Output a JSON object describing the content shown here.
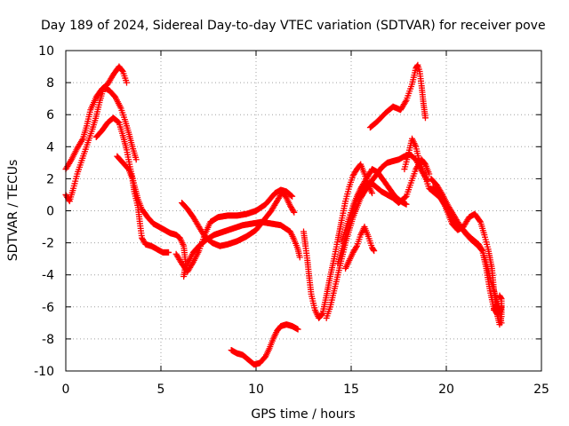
{
  "chart_data": {
    "type": "scatter",
    "title": "Day 189 of 2024, Sidereal Day-to-day VTEC variation (SDTVAR) for receiver pove",
    "xlabel": "GPS time / hours",
    "ylabel": "SDTVAR / TECUs",
    "xlim": [
      0,
      25
    ],
    "ylim": [
      -10,
      10
    ],
    "x_ticks": [
      0,
      5,
      10,
      15,
      20,
      25
    ],
    "x_tick_labels": [
      "0",
      "5",
      "10",
      "15",
      "20",
      "25"
    ],
    "y_ticks": [
      -10,
      -8,
      -6,
      -4,
      -2,
      0,
      2,
      4,
      6,
      8,
      10
    ],
    "y_tick_labels": [
      "-10",
      "-8",
      "-6",
      "-4",
      "-2",
      "0",
      "2",
      "4",
      "6",
      "8",
      "10"
    ],
    "grid": true,
    "marker": "plus",
    "color": "#ff0000",
    "series": [
      {
        "name": "s1",
        "points": [
          [
            0,
            2.6
          ],
          [
            0.3,
            3.2
          ],
          [
            0.6,
            3.9
          ],
          [
            0.9,
            4.5
          ],
          [
            1.1,
            5.3
          ],
          [
            1.3,
            6.3
          ],
          [
            1.6,
            7.1
          ],
          [
            1.9,
            7.6
          ],
          [
            2.2,
            7.9
          ],
          [
            2.5,
            8.5
          ],
          [
            2.8,
            9.0
          ],
          [
            3.0,
            8.7
          ],
          [
            3.2,
            8.0
          ]
        ]
      },
      {
        "name": "s2",
        "points": [
          [
            0,
            1.0
          ],
          [
            0.2,
            0.6
          ],
          [
            0.4,
            1.4
          ],
          [
            0.6,
            2.3
          ],
          [
            0.8,
            3.0
          ],
          [
            1.0,
            3.7
          ],
          [
            1.2,
            4.4
          ],
          [
            1.4,
            5.1
          ],
          [
            1.6,
            5.9
          ],
          [
            1.8,
            6.9
          ],
          [
            2.0,
            7.7
          ],
          [
            2.3,
            7.5
          ],
          [
            2.6,
            7.1
          ],
          [
            2.9,
            6.4
          ],
          [
            3.1,
            5.7
          ],
          [
            3.3,
            4.9
          ],
          [
            3.5,
            4.0
          ],
          [
            3.7,
            3.2
          ]
        ]
      },
      {
        "name": "s3",
        "points": [
          [
            1.6,
            4.6
          ],
          [
            1.9,
            5.0
          ],
          [
            2.2,
            5.5
          ],
          [
            2.5,
            5.8
          ],
          [
            2.8,
            5.5
          ],
          [
            3.0,
            4.7
          ],
          [
            3.2,
            3.8
          ],
          [
            3.4,
            2.6
          ],
          [
            3.6,
            1.6
          ],
          [
            3.8,
            0.7
          ],
          [
            4.0,
            0.1
          ],
          [
            4.3,
            -0.4
          ],
          [
            4.6,
            -0.8
          ],
          [
            4.9,
            -1.0
          ],
          [
            5.2,
            -1.2
          ],
          [
            5.5,
            -1.4
          ],
          [
            5.8,
            -1.5
          ],
          [
            6.0,
            -1.7
          ],
          [
            6.2,
            -2.2
          ],
          [
            6.3,
            -3.3
          ],
          [
            6.2,
            -4.1
          ],
          [
            6.4,
            -3.3
          ],
          [
            6.7,
            -2.6
          ],
          [
            7.0,
            -2.2
          ],
          [
            7.4,
            -1.8
          ],
          [
            7.8,
            -1.5
          ],
          [
            8.3,
            -1.3
          ],
          [
            8.8,
            -1.1
          ],
          [
            9.3,
            -0.9
          ],
          [
            9.8,
            -0.8
          ],
          [
            10.3,
            -0.7
          ],
          [
            10.8,
            -0.8
          ],
          [
            11.3,
            -0.9
          ],
          [
            11.8,
            -1.3
          ],
          [
            12.0,
            -1.8
          ],
          [
            12.2,
            -2.4
          ],
          [
            12.3,
            -2.9
          ]
        ]
      },
      {
        "name": "s4",
        "points": [
          [
            2.7,
            3.4
          ],
          [
            3.0,
            3.0
          ],
          [
            3.3,
            2.6
          ],
          [
            3.5,
            2.0
          ],
          [
            3.6,
            1.2
          ],
          [
            3.8,
            0.2
          ],
          [
            3.9,
            -0.8
          ],
          [
            4.0,
            -1.7
          ],
          [
            4.2,
            -2.1
          ],
          [
            4.5,
            -2.2
          ],
          [
            4.8,
            -2.4
          ],
          [
            5.1,
            -2.6
          ],
          [
            5.4,
            -2.6
          ]
        ]
      },
      {
        "name": "s5",
        "points": [
          [
            6.1,
            0.5
          ],
          [
            6.4,
            0.1
          ],
          [
            6.7,
            -0.4
          ],
          [
            7.0,
            -1.0
          ],
          [
            7.3,
            -1.6
          ],
          [
            7.7,
            -2.0
          ],
          [
            8.1,
            -2.2
          ],
          [
            8.5,
            -2.1
          ],
          [
            9.0,
            -1.9
          ],
          [
            9.5,
            -1.6
          ],
          [
            10.0,
            -1.2
          ],
          [
            10.4,
            -0.6
          ],
          [
            10.8,
            0.0
          ],
          [
            11.1,
            0.6
          ],
          [
            11.4,
            1.2
          ],
          [
            11.6,
            0.8
          ],
          [
            11.8,
            0.3
          ],
          [
            12.0,
            -0.1
          ]
        ]
      },
      {
        "name": "s6",
        "points": [
          [
            5.8,
            -2.7
          ],
          [
            6.1,
            -3.3
          ],
          [
            6.4,
            -3.8
          ],
          [
            6.7,
            -3.2
          ],
          [
            7.0,
            -2.5
          ],
          [
            7.3,
            -1.5
          ],
          [
            7.6,
            -0.7
          ],
          [
            8.0,
            -0.4
          ],
          [
            8.5,
            -0.3
          ],
          [
            9.0,
            -0.3
          ],
          [
            9.5,
            -0.2
          ],
          [
            10.0,
            0.0
          ],
          [
            10.5,
            0.4
          ],
          [
            11.0,
            1.1
          ],
          [
            11.3,
            1.3
          ],
          [
            11.6,
            1.2
          ],
          [
            11.9,
            0.9
          ]
        ]
      },
      {
        "name": "s7",
        "points": [
          [
            8.7,
            -8.7
          ],
          [
            9.0,
            -8.9
          ],
          [
            9.3,
            -9.0
          ],
          [
            9.6,
            -9.3
          ],
          [
            9.9,
            -9.6
          ],
          [
            10.2,
            -9.5
          ],
          [
            10.5,
            -9.1
          ],
          [
            10.7,
            -8.6
          ],
          [
            10.9,
            -8.0
          ],
          [
            11.1,
            -7.5
          ],
          [
            11.3,
            -7.2
          ],
          [
            11.6,
            -7.1
          ],
          [
            11.9,
            -7.2
          ],
          [
            12.2,
            -7.4
          ]
        ]
      },
      {
        "name": "s8",
        "points": [
          [
            12.5,
            -1.3
          ],
          [
            12.6,
            -2.2
          ],
          [
            12.7,
            -3.1
          ],
          [
            12.8,
            -4.2
          ],
          [
            12.9,
            -5.2
          ],
          [
            13.1,
            -6.2
          ],
          [
            13.3,
            -6.7
          ],
          [
            13.5,
            -6.4
          ],
          [
            13.7,
            -5.3
          ],
          [
            13.9,
            -4.1
          ],
          [
            14.1,
            -3.0
          ],
          [
            14.3,
            -1.8
          ],
          [
            14.5,
            -0.6
          ],
          [
            14.7,
            0.6
          ],
          [
            14.9,
            1.5
          ],
          [
            15.1,
            2.2
          ],
          [
            15.3,
            2.6
          ],
          [
            15.5,
            2.9
          ],
          [
            15.7,
            2.3
          ],
          [
            15.9,
            1.6
          ],
          [
            16.1,
            1.1
          ]
        ]
      },
      {
        "name": "s9",
        "points": [
          [
            13.7,
            -6.7
          ],
          [
            13.9,
            -6.0
          ],
          [
            14.1,
            -5.0
          ],
          [
            14.3,
            -4.0
          ],
          [
            14.5,
            -3.0
          ],
          [
            14.7,
            -2.0
          ],
          [
            14.9,
            -1.2
          ],
          [
            15.1,
            -0.4
          ],
          [
            15.3,
            0.2
          ],
          [
            15.5,
            0.8
          ],
          [
            15.7,
            1.2
          ],
          [
            15.9,
            1.5
          ],
          [
            16.1,
            1.9
          ],
          [
            16.3,
            2.2
          ],
          [
            16.6,
            2.7
          ],
          [
            16.9,
            3.0
          ],
          [
            17.2,
            3.1
          ],
          [
            17.5,
            3.2
          ],
          [
            17.8,
            3.4
          ],
          [
            18.1,
            3.5
          ],
          [
            18.4,
            3.2
          ],
          [
            18.7,
            2.5
          ],
          [
            19.0,
            1.9
          ]
        ]
      },
      {
        "name": "s10",
        "points": [
          [
            14.3,
            -3.3
          ],
          [
            14.5,
            -2.5
          ],
          [
            14.7,
            -1.6
          ],
          [
            14.9,
            -0.8
          ],
          [
            15.1,
            0.0
          ],
          [
            15.3,
            0.7
          ],
          [
            15.5,
            1.2
          ],
          [
            15.7,
            1.5
          ],
          [
            16.0,
            1.8
          ],
          [
            16.3,
            1.5
          ],
          [
            16.6,
            1.2
          ],
          [
            16.9,
            1.0
          ],
          [
            17.2,
            0.8
          ],
          [
            17.5,
            0.5
          ],
          [
            17.9,
            0.9
          ],
          [
            18.1,
            1.6
          ],
          [
            18.4,
            2.6
          ],
          [
            18.7,
            3.2
          ],
          [
            18.9,
            2.9
          ],
          [
            19.1,
            2.3
          ]
        ]
      },
      {
        "name": "s11",
        "points": [
          [
            14.7,
            -3.6
          ],
          [
            14.9,
            -3.1
          ],
          [
            15.1,
            -2.6
          ],
          [
            15.3,
            -2.2
          ],
          [
            15.5,
            -1.5
          ],
          [
            15.7,
            -1.0
          ],
          [
            15.9,
            -1.6
          ],
          [
            16.1,
            -2.3
          ],
          [
            16.2,
            -2.5
          ]
        ]
      },
      {
        "name": "s12",
        "points": [
          [
            14.5,
            -1.9
          ],
          [
            14.7,
            -1.2
          ],
          [
            14.9,
            -0.4
          ],
          [
            15.1,
            0.3
          ],
          [
            15.3,
            0.9
          ],
          [
            15.5,
            1.4
          ],
          [
            15.8,
            2.0
          ],
          [
            16.1,
            2.6
          ],
          [
            16.4,
            2.4
          ],
          [
            16.7,
            1.9
          ],
          [
            17.0,
            1.4
          ],
          [
            17.3,
            0.9
          ],
          [
            17.6,
            0.6
          ],
          [
            17.9,
            0.4
          ]
        ]
      },
      {
        "name": "s13",
        "points": [
          [
            16.0,
            5.2
          ],
          [
            16.4,
            5.6
          ],
          [
            16.8,
            6.1
          ],
          [
            17.2,
            6.5
          ],
          [
            17.6,
            6.3
          ],
          [
            17.9,
            6.9
          ],
          [
            18.2,
            7.9
          ],
          [
            18.4,
            8.9
          ],
          [
            18.5,
            9.1
          ],
          [
            18.6,
            8.7
          ],
          [
            18.7,
            7.8
          ],
          [
            18.8,
            6.7
          ],
          [
            18.9,
            5.8
          ]
        ]
      },
      {
        "name": "s14",
        "points": [
          [
            17.8,
            2.6
          ],
          [
            18.0,
            3.5
          ],
          [
            18.2,
            4.5
          ],
          [
            18.4,
            4.0
          ],
          [
            18.6,
            3.0
          ],
          [
            18.9,
            2.1
          ],
          [
            19.1,
            1.4
          ],
          [
            19.4,
            1.1
          ],
          [
            19.7,
            0.8
          ],
          [
            20.0,
            0.2
          ],
          [
            20.3,
            -0.4
          ],
          [
            20.6,
            -0.9
          ],
          [
            20.9,
            -1.2
          ],
          [
            21.2,
            -1.6
          ],
          [
            21.5,
            -1.9
          ],
          [
            21.7,
            -2.1
          ],
          [
            21.9,
            -2.5
          ],
          [
            22.1,
            -3.6
          ],
          [
            22.3,
            -5.0
          ],
          [
            22.5,
            -6.1
          ],
          [
            22.7,
            -6.5
          ],
          [
            22.8,
            -6.2
          ]
        ]
      },
      {
        "name": "s15",
        "points": [
          [
            19.3,
            1.5
          ],
          [
            19.6,
            1.0
          ],
          [
            19.9,
            0.4
          ],
          [
            20.1,
            -0.2
          ],
          [
            20.3,
            -0.8
          ],
          [
            20.6,
            -1.2
          ],
          [
            20.9,
            -1.0
          ],
          [
            21.2,
            -0.4
          ],
          [
            21.5,
            -0.2
          ],
          [
            21.8,
            -0.7
          ],
          [
            22.0,
            -1.5
          ],
          [
            22.2,
            -2.4
          ],
          [
            22.4,
            -3.6
          ],
          [
            22.5,
            -4.9
          ],
          [
            22.6,
            -5.7
          ],
          [
            22.7,
            -6.1
          ],
          [
            22.8,
            -6.4
          ],
          [
            22.9,
            -6.0
          ]
        ]
      },
      {
        "name": "s16",
        "points": [
          [
            19.2,
            2.0
          ],
          [
            19.5,
            1.6
          ],
          [
            19.8,
            1.0
          ],
          [
            20.1,
            0.3
          ],
          [
            20.4,
            -0.3
          ],
          [
            20.7,
            -0.9
          ],
          [
            21.0,
            -1.4
          ],
          [
            21.3,
            -1.8
          ],
          [
            21.6,
            -2.1
          ],
          [
            21.9,
            -2.5
          ],
          [
            22.1,
            -3.2
          ],
          [
            22.3,
            -4.2
          ],
          [
            22.5,
            -5.0
          ],
          [
            22.7,
            -5.8
          ],
          [
            22.9,
            -7.0
          ]
        ]
      },
      {
        "name": "s17",
        "points": [
          [
            22.5,
            -6.2
          ],
          [
            22.6,
            -5.8
          ],
          [
            22.7,
            -6.6
          ],
          [
            22.8,
            -7.1
          ],
          [
            22.9,
            -6.6
          ],
          [
            22.9,
            -5.5
          ],
          [
            22.8,
            -5.3
          ]
        ]
      }
    ]
  }
}
